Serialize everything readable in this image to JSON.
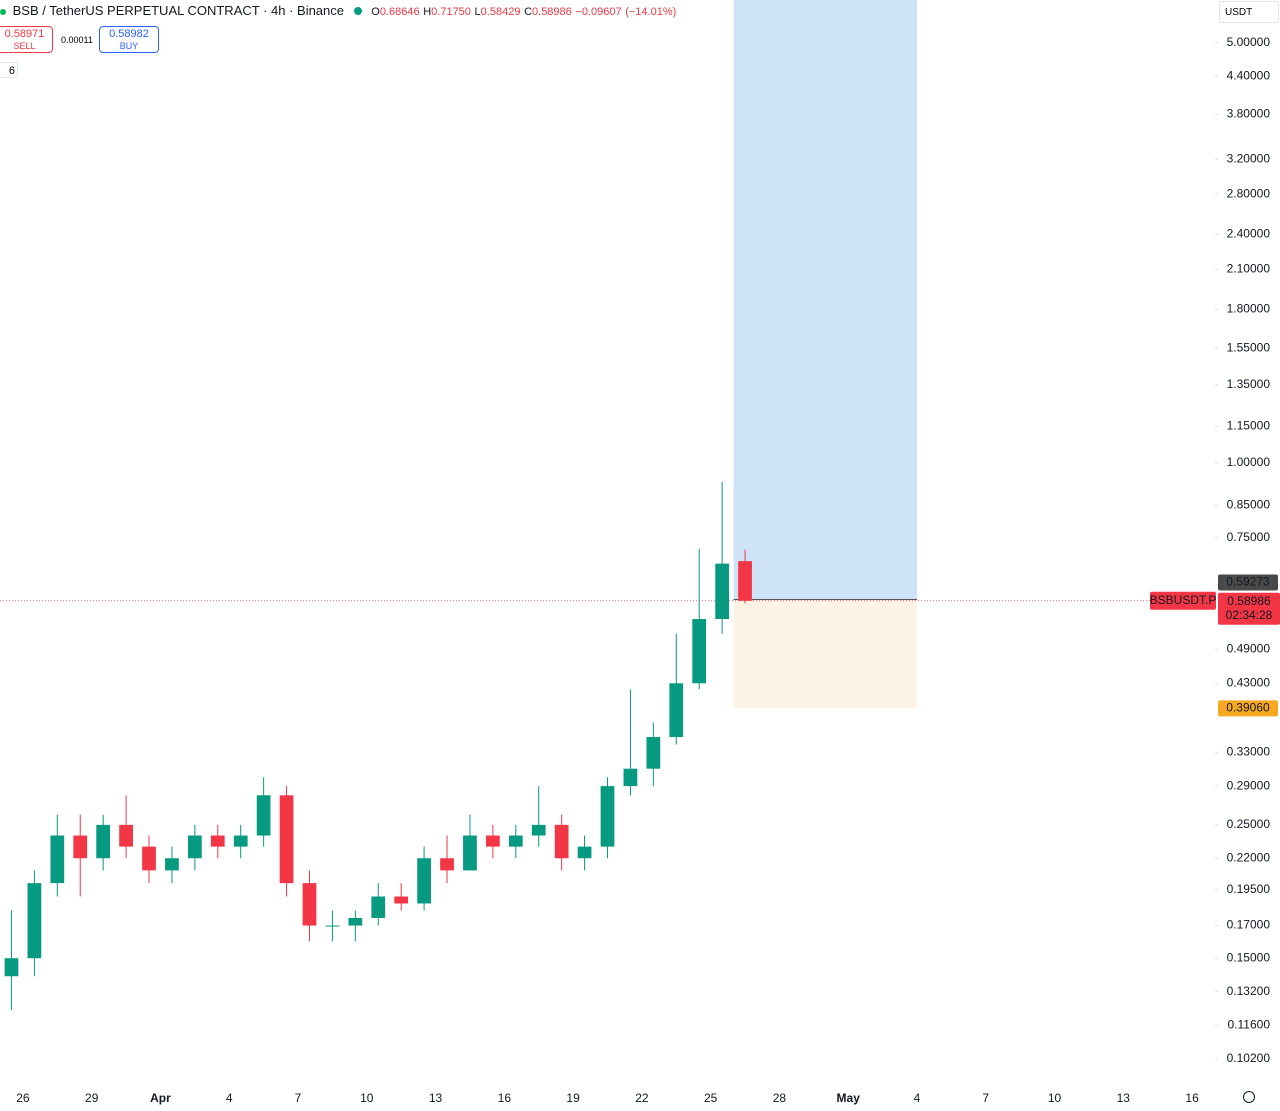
{
  "header": {
    "title": "BSB / TetherUS PERPETUAL CONTRACT · 4h · Binance",
    "ohlc_labels": [
      "O",
      "H",
      "L",
      "C"
    ],
    "ohlc": [
      {
        "value": 0.68646,
        "label": "0.68646"
      },
      {
        "value": 0.7175,
        "label": "0.71750"
      },
      {
        "value": 0.58429,
        "label": "0.58429"
      },
      {
        "value": 0.58986,
        "label": "0.58986"
      }
    ],
    "change": {
      "value": -0.09607,
      "label": "−0.09607"
    },
    "change_pct": {
      "value": -14.01,
      "label": "(−14.01%)"
    }
  },
  "trade": {
    "sell_price": 0.58971,
    "sell_label": "SELL",
    "spread": 0.00011,
    "buy_price": 0.58982,
    "buy_label": "BUY"
  },
  "indicator_count": 6,
  "currency": "USDT",
  "chart_data": {
    "type": "candlestick",
    "x": [
      "Mar 25",
      "Mar 26",
      "Mar 27",
      "Mar 28",
      "Mar 29",
      "Mar 30",
      "Mar 31",
      "Apr 1",
      "Apr 2",
      "Apr 3",
      "Apr 4",
      "Apr 5",
      "Apr 6",
      "Apr 7",
      "Apr 8",
      "Apr 9",
      "Apr 10",
      "Apr 11",
      "Apr 12",
      "Apr 13",
      "Apr 14",
      "Apr 15",
      "Apr 16",
      "Apr 17",
      "Apr 18",
      "Apr 19",
      "Apr 20",
      "Apr 21",
      "Apr 22",
      "Apr 23",
      "Apr 24",
      "Apr 25",
      "Apr 26"
    ],
    "open": [
      0.14,
      0.15,
      0.2,
      0.24,
      0.22,
      0.25,
      0.23,
      0.21,
      0.22,
      0.24,
      0.23,
      0.24,
      0.28,
      0.2,
      0.17,
      0.17,
      0.175,
      0.19,
      0.185,
      0.22,
      0.21,
      0.24,
      0.23,
      0.24,
      0.25,
      0.22,
      0.23,
      0.29,
      0.31,
      0.35,
      0.43,
      0.55,
      0.68646
    ],
    "high": [
      0.18,
      0.21,
      0.26,
      0.26,
      0.26,
      0.28,
      0.24,
      0.23,
      0.25,
      0.25,
      0.25,
      0.3,
      0.29,
      0.21,
      0.18,
      0.18,
      0.2,
      0.2,
      0.23,
      0.24,
      0.26,
      0.25,
      0.25,
      0.29,
      0.26,
      0.24,
      0.3,
      0.42,
      0.37,
      0.52,
      0.72,
      0.93,
      0.7175
    ],
    "low": [
      0.123,
      0.14,
      0.19,
      0.19,
      0.21,
      0.22,
      0.2,
      0.2,
      0.21,
      0.22,
      0.22,
      0.23,
      0.19,
      0.16,
      0.16,
      0.16,
      0.17,
      0.18,
      0.18,
      0.2,
      0.21,
      0.22,
      0.22,
      0.23,
      0.21,
      0.21,
      0.22,
      0.28,
      0.29,
      0.34,
      0.42,
      0.52,
      0.58429
    ],
    "close": [
      0.15,
      0.2,
      0.24,
      0.22,
      0.25,
      0.23,
      0.21,
      0.22,
      0.24,
      0.23,
      0.24,
      0.28,
      0.2,
      0.17,
      0.17,
      0.175,
      0.19,
      0.185,
      0.22,
      0.21,
      0.24,
      0.23,
      0.24,
      0.25,
      0.22,
      0.23,
      0.29,
      0.31,
      0.35,
      0.43,
      0.55,
      0.68,
      0.58986
    ],
    "log_scale": true,
    "ylim": [
      0.0923,
      5.89
    ],
    "yticks": [
      {
        "value": 5,
        "label": "5.00000"
      },
      {
        "value": 4.4,
        "label": "4.40000"
      },
      {
        "value": 3.8,
        "label": "3.80000"
      },
      {
        "value": 3.2,
        "label": "3.20000"
      },
      {
        "value": 2.8,
        "label": "2.80000"
      },
      {
        "value": 2.4,
        "label": "2.40000"
      },
      {
        "value": 2.1,
        "label": "2.10000"
      },
      {
        "value": 1.8,
        "label": "1.80000"
      },
      {
        "value": 1.55,
        "label": "1.55000"
      },
      {
        "value": 1.35,
        "label": "1.35000"
      },
      {
        "value": 1.15,
        "label": "1.15000"
      },
      {
        "value": 1,
        "label": "1.00000"
      },
      {
        "value": 0.85,
        "label": "0.85000"
      },
      {
        "value": 0.75,
        "label": "0.75000"
      },
      {
        "value": 0.49,
        "label": "0.49000"
      },
      {
        "value": 0.43,
        "label": "0.43000"
      },
      {
        "value": 0.33,
        "label": "0.33000"
      },
      {
        "value": 0.29,
        "label": "0.29000"
      },
      {
        "value": 0.25,
        "label": "0.25000"
      },
      {
        "value": 0.22,
        "label": "0.22000"
      },
      {
        "value": 0.195,
        "label": "0.19500"
      },
      {
        "value": 0.17,
        "label": "0.17000"
      },
      {
        "value": 0.15,
        "label": "0.15000"
      },
      {
        "value": 0.132,
        "label": "0.13200"
      },
      {
        "value": 0.116,
        "label": "0.11600"
      },
      {
        "value": 0.102,
        "label": "0.10200"
      }
    ],
    "xlim": [
      "Mar 25",
      "May 17"
    ],
    "xticks": [
      {
        "value": "Mar 26",
        "label": "26"
      },
      {
        "value": "Mar 29",
        "label": "29"
      },
      {
        "value": "Apr 1",
        "label": "Apr"
      },
      {
        "value": "Apr 4",
        "label": "4"
      },
      {
        "value": "Apr 7",
        "label": "7"
      },
      {
        "value": "Apr 10",
        "label": "10"
      },
      {
        "value": "Apr 13",
        "label": "13"
      },
      {
        "value": "Apr 16",
        "label": "16"
      },
      {
        "value": "Apr 19",
        "label": "19"
      },
      {
        "value": "Apr 22",
        "label": "22"
      },
      {
        "value": "Apr 25",
        "label": "25"
      },
      {
        "value": "Apr 28",
        "label": "28"
      },
      {
        "value": "May 1",
        "label": "May"
      },
      {
        "value": "May 4",
        "label": "4"
      },
      {
        "value": "May 7",
        "label": "7"
      },
      {
        "value": "May 10",
        "label": "10"
      },
      {
        "value": "May 13",
        "label": "13"
      },
      {
        "value": "May 16",
        "label": "16"
      }
    ],
    "up_color": "#089981",
    "down_color": "#f23645",
    "last_price": 0.58986,
    "symbol": "BSBUSDT.P",
    "countdown": "02:34:28",
    "crosshair_price": 0.59273,
    "position": {
      "x": [
        "Apr 26",
        "May 4"
      ],
      "entry": 0.59273,
      "stop": {
        "value": 0.3906,
        "label": "0.39060"
      },
      "profit_color": "#cfe3f8",
      "loss_color": "#fcf3e4",
      "stop_color": "#f7a823"
    }
  }
}
